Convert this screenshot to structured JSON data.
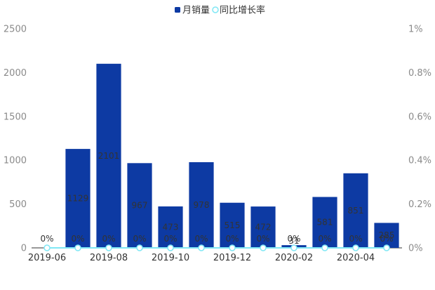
{
  "chart_data": {
    "type": "bar",
    "title": "",
    "categories": [
      "2019-06",
      "2019-07",
      "2019-08",
      "2019-09",
      "2019-10",
      "2019-11",
      "2019-12",
      "2020-01",
      "2020-02",
      "2020-03",
      "2020-04",
      "2020-05"
    ],
    "x_tick_labels": [
      "2019-06",
      "2019-08",
      "2019-10",
      "2019-12",
      "2020-02",
      "2020-04"
    ],
    "series": [
      {
        "name": "月销量",
        "kind": "bar",
        "axis": "left",
        "color": "#0d3aa3",
        "values": [
          0,
          1129,
          2101,
          967,
          473,
          978,
          515,
          472,
          31,
          581,
          851,
          285
        ]
      },
      {
        "name": "同比增长率",
        "kind": "line",
        "axis": "right",
        "color": "#7fe7f5",
        "values": [
          0,
          0,
          0,
          0,
          0,
          0,
          0,
          0,
          0,
          0,
          0,
          0
        ],
        "labels": [
          "0%",
          "0%",
          "0%",
          "0%",
          "0%",
          "0%",
          "0%",
          "0%",
          "0%",
          "0%",
          "0%",
          "0%"
        ]
      }
    ],
    "bar_labels": [
      "",
      "1129",
      "2101",
      "967",
      "473",
      "978",
      "515",
      "472",
      "31",
      "581",
      "851",
      "285"
    ],
    "y_left": {
      "range": [
        0,
        2500
      ],
      "ticks": [
        "0",
        "500",
        "1000",
        "1500",
        "2000",
        "2500"
      ]
    },
    "y_right": {
      "range": [
        0,
        1
      ],
      "unit": "%",
      "ticks": [
        "0%",
        "0.2%",
        "0.4%",
        "0.6%",
        "0.8%",
        "1%"
      ]
    },
    "legend": {
      "position": "top-center",
      "items": [
        "月销量",
        "同比增长率"
      ]
    },
    "grid": false
  }
}
